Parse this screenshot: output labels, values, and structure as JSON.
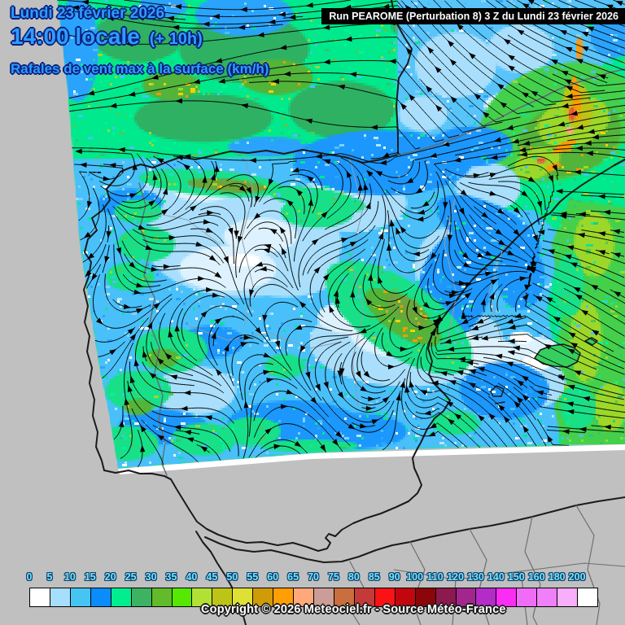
{
  "header": {
    "date": "Lundi 23 février 2026",
    "time": "14:00 locale",
    "offset": "(+ 10h)",
    "subtitle": "Rafales de vent max à la surface (km/h)"
  },
  "run_box": {
    "text": "Run PEAROME (Perturbation 8) 3 Z du Lundi 23 février 2026"
  },
  "legend": {
    "values": [
      "0",
      "5",
      "10",
      "15",
      "20",
      "25",
      "30",
      "35",
      "40",
      "45",
      "50",
      "55",
      "60",
      "65",
      "70",
      "75",
      "80",
      "85",
      "90",
      "100",
      "110",
      "120",
      "130",
      "140",
      "150",
      "160",
      "180",
      "200"
    ],
    "colors": [
      "#ffffff",
      "#a6defb",
      "#46c5f3",
      "#0a8cfd",
      "#00ee8e",
      "#3cb263",
      "#62bb2b",
      "#55e800",
      "#b2e136",
      "#bcc417",
      "#dee035",
      "#cf9b06",
      "#ff9e05",
      "#ffa97b",
      "#cc9d96",
      "#c96e3c",
      "#c43a38",
      "#fb1216",
      "#c3060d",
      "#8c0509",
      "#8c1a4e",
      "#a2268e",
      "#b32cc8",
      "#fb2cf4",
      "#ef6cf6",
      "#f080f8",
      "#f9aefb",
      "#ffffff"
    ]
  },
  "footer": {
    "copyright": "Copyright © 2026 Meteociel.fr - Source Météo-France"
  },
  "accent_colors": {
    "title_blue": "#2f9bff",
    "title_outline": "#0a1f7a",
    "legend_label_cyan": "#70e8f8"
  },
  "map_colors": {
    "background_gray": "#c0c0c0",
    "field_base_green": "#00e98c",
    "sea_green_dark": "#2eb162",
    "grass_green": "#53b43a",
    "biscay_blue": "#2aa3fd",
    "france_blue": "#58c4fa",
    "interior_blue": "#49c0fa",
    "dodger_blue": "#1b97fd",
    "pale_blue": "#a9dffc",
    "near_white_blue": "#ddf2fe",
    "white": "#ffffff",
    "east_green": "#44d04b",
    "bright_green": "#17e089",
    "yellow_green": "#9cd829",
    "olive": "#bcc417",
    "orange": "#ff9a05",
    "red_spot": "#f0503a",
    "salmon": "#ffa97b",
    "island_green": "#35cf5f",
    "coast_line": "#1b1b1b",
    "border_line": "#5f6f75",
    "province_line": "#8fa0ad",
    "africa_line": "#6e6e6e",
    "stream_line": "#000000"
  }
}
